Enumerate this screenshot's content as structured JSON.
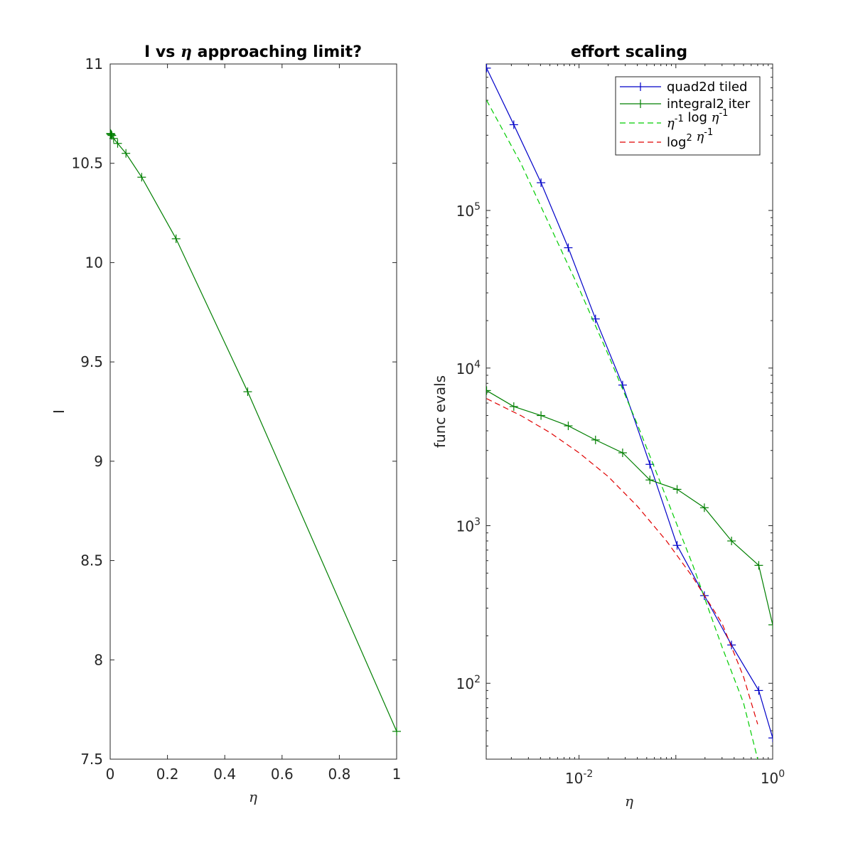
{
  "chart_data": [
    {
      "type": "line",
      "title": "I vs η approaching limit?",
      "xlabel": "η",
      "ylabel": "I",
      "xlim": [
        0,
        1
      ],
      "ylim": [
        7.5,
        11
      ],
      "x_scale": "linear",
      "y_scale": "linear",
      "grid": false,
      "xticks": [
        0,
        0.2,
        0.4,
        0.6,
        0.8,
        1
      ],
      "xtick_labels": [
        "0",
        "0.2",
        "0.4",
        "0.6",
        "0.8",
        "1"
      ],
      "yticks": [
        7.5,
        8,
        8.5,
        9,
        9.5,
        10,
        10.5,
        11
      ],
      "ytick_labels": [
        "7.5",
        "8",
        "8.5",
        "9",
        "9.5",
        "10",
        "10.5",
        "11"
      ],
      "series": [
        {
          "color": "#007f00",
          "marker": "+",
          "x": [
            0.001,
            0.002,
            0.0035,
            0.006,
            0.012,
            0.026,
            0.055,
            0.11,
            0.23,
            0.48,
            1.0
          ],
          "y": [
            10.65,
            10.648,
            10.645,
            10.64,
            10.625,
            10.6,
            10.55,
            10.43,
            10.12,
            9.35,
            7.64
          ]
        }
      ]
    },
    {
      "type": "line",
      "title": "effort scaling",
      "xlabel": "η",
      "ylabel": "func evals",
      "x_scale": "log",
      "y_scale": "log",
      "xlim": [
        0.0011,
        1
      ],
      "ylim": [
        33,
        850000
      ],
      "grid": false,
      "xticks": [
        0.01,
        1
      ],
      "xtick_labels": [
        {
          "base": "10",
          "exp": "-2"
        },
        {
          "base": "10",
          "exp": "0"
        }
      ],
      "yticks": [
        100,
        1000,
        10000,
        100000
      ],
      "ytick_labels": [
        {
          "base": "10",
          "exp": "2"
        },
        {
          "base": "10",
          "exp": "3"
        },
        {
          "base": "10",
          "exp": "4"
        },
        {
          "base": "10",
          "exp": "5"
        }
      ],
      "legend_position": "top-right",
      "series": [
        {
          "name": "quad2d tiled",
          "color": "#0000c8",
          "style": "solid",
          "marker": "+",
          "x": [
            0.00111,
            0.00212,
            0.00405,
            0.00774,
            0.0148,
            0.0282,
            0.0539,
            0.103,
            0.197,
            0.376,
            0.718,
            1.0
          ],
          "y": [
            800000,
            350000,
            150000,
            58000,
            20500,
            7800,
            2450,
            750,
            360,
            175,
            90,
            45
          ]
        },
        {
          "name": "integral2 iter",
          "color": "#007f00",
          "style": "solid",
          "marker": "+",
          "x": [
            0.00111,
            0.00212,
            0.00405,
            0.00774,
            0.0148,
            0.0282,
            0.0539,
            0.103,
            0.197,
            0.376,
            0.718,
            1.0
          ],
          "y": [
            7200,
            5700,
            5000,
            4300,
            3500,
            2900,
            1950,
            1700,
            1300,
            800,
            560,
            235
          ]
        },
        {
          "name_parts": [
            {
              "text": "η",
              "math": true
            },
            {
              "text": "-1",
              "sup": true
            },
            {
              "text": " log "
            },
            {
              "text": "η",
              "math": true
            },
            {
              "text": "-1",
              "sup": true
            }
          ],
          "color": "#00cc00",
          "style": "dashed",
          "marker": "none",
          "x": [
            0.00111,
            0.0025,
            0.005,
            0.01,
            0.02,
            0.04,
            0.08,
            0.15,
            0.3,
            0.5,
            0.7
          ],
          "y": [
            500000,
            200000,
            80000,
            32000,
            12200,
            4400,
            1500,
            560,
            170,
            75,
            33
          ]
        },
        {
          "name_parts": [
            {
              "text": "log"
            },
            {
              "text": "2",
              "sup": true
            },
            {
              "text": " "
            },
            {
              "text": "η",
              "math": true
            },
            {
              "text": "-1",
              "sup": true
            }
          ],
          "color": "#e00000",
          "style": "dashed",
          "marker": "none",
          "x": [
            0.00111,
            0.0025,
            0.005,
            0.01,
            0.02,
            0.04,
            0.08,
            0.15,
            0.3,
            0.5,
            0.7
          ],
          "y": [
            6400,
            5000,
            3900,
            2900,
            2050,
            1330,
            800,
            470,
            240,
            110,
            55
          ]
        }
      ]
    }
  ]
}
